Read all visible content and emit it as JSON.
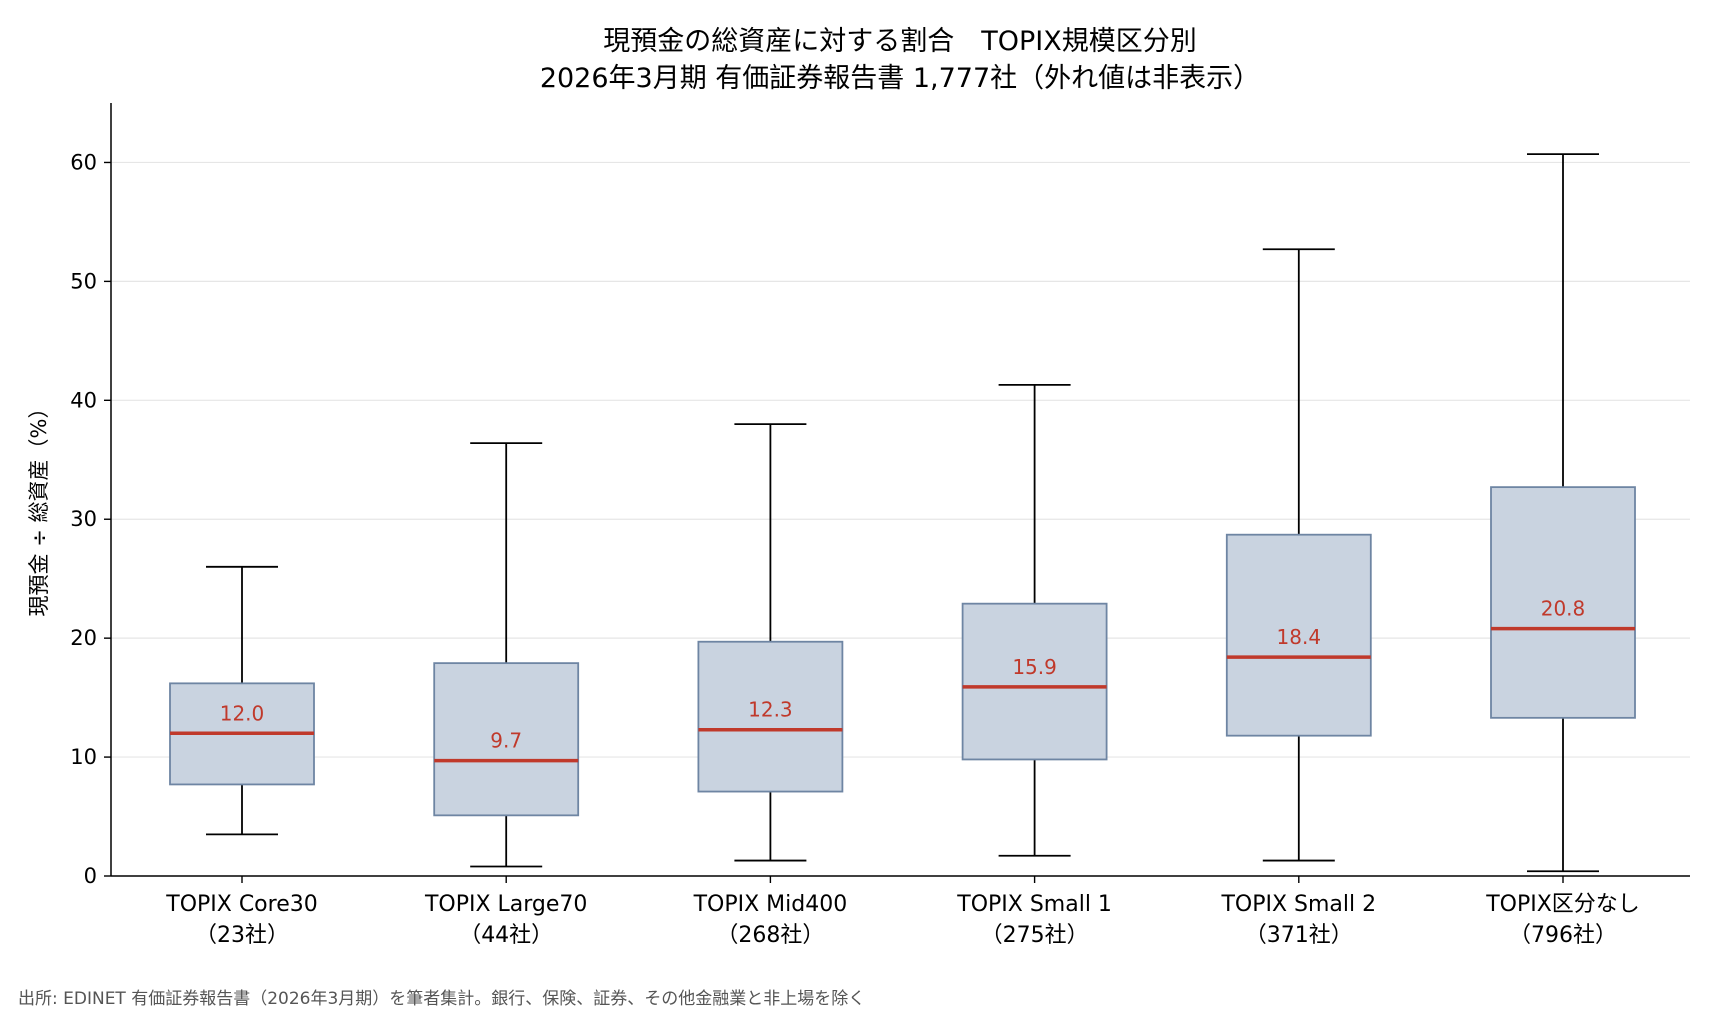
{
  "chart_data": {
    "type": "box",
    "title": "現預金の総資産に対する割合　TOPIX規模区分別",
    "subtitle": "2026年3月期 有価証券報告書 1,777社（外れ値は非表示）",
    "ylabel": "現預金 ÷ 総資産（%）",
    "xlabel": "",
    "ylim": [
      0,
      65
    ],
    "yticks": [
      0,
      10,
      20,
      30,
      40,
      50,
      60
    ],
    "grid": "horizontal",
    "categories": [
      {
        "name": "TOPIX Core30",
        "count": "（23社）",
        "whisker_low": 3.5,
        "q1": 7.7,
        "median": 12.0,
        "q3": 16.2,
        "whisker_high": 26.0,
        "median_label": "12.0"
      },
      {
        "name": "TOPIX Large70",
        "count": "（44社）",
        "whisker_low": 0.8,
        "q1": 5.1,
        "median": 9.7,
        "q3": 17.9,
        "whisker_high": 36.4,
        "median_label": "9.7"
      },
      {
        "name": "TOPIX Mid400",
        "count": "（268社）",
        "whisker_low": 1.3,
        "q1": 7.1,
        "median": 12.3,
        "q3": 19.7,
        "whisker_high": 38.0,
        "median_label": "12.3"
      },
      {
        "name": "TOPIX Small 1",
        "count": "（275社）",
        "whisker_low": 1.7,
        "q1": 9.8,
        "median": 15.9,
        "q3": 22.9,
        "whisker_high": 41.3,
        "median_label": "15.9"
      },
      {
        "name": "TOPIX Small 2",
        "count": "（371社）",
        "whisker_low": 1.3,
        "q1": 11.8,
        "median": 18.4,
        "q3": 28.7,
        "whisker_high": 52.7,
        "median_label": "18.4"
      },
      {
        "name": "TOPIX区分なし",
        "count": "（796社）",
        "whisker_low": 0.4,
        "q1": 13.3,
        "median": 20.8,
        "q3": 32.7,
        "whisker_high": 60.7,
        "median_label": "20.8"
      }
    ],
    "colors": {
      "box_fill": "#c9d3e0",
      "box_edge": "#6e85a3",
      "median": "#c0392b",
      "whisker": "#000000",
      "grid": "#e6e6e6"
    }
  },
  "footnote": "出所: EDINET 有価証券報告書（2026年3月期）を筆者集計。銀行、保険、証券、その他金融業と非上場を除く"
}
